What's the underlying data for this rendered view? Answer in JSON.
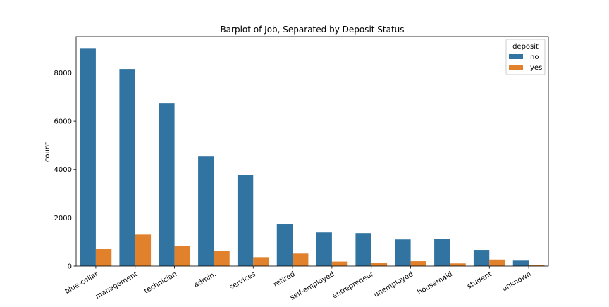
{
  "chart_data": {
    "type": "bar",
    "title": "Barplot of Job, Separated by Deposit Status",
    "xlabel": "",
    "ylabel": "count",
    "ylim": [
      0,
      9500
    ],
    "yticks": [
      0,
      2000,
      4000,
      6000,
      8000
    ],
    "categories": [
      "blue-collar",
      "management",
      "technician",
      "admin.",
      "services",
      "retired",
      "self-employed",
      "entrepreneur",
      "unemployed",
      "housemaid",
      "student",
      "unknown"
    ],
    "series": [
      {
        "name": "no",
        "color": "#3274a1",
        "values": [
          9024,
          8157,
          6757,
          4540,
          3785,
          1748,
          1392,
          1364,
          1101,
          1131,
          669,
          254
        ]
      },
      {
        "name": "yes",
        "color": "#e1812c",
        "values": [
          708,
          1301,
          840,
          631,
          369,
          516,
          187,
          123,
          202,
          109,
          269,
          34
        ]
      }
    ],
    "legend": {
      "title": "deposit",
      "placement": "top-right"
    },
    "grid": false
  }
}
